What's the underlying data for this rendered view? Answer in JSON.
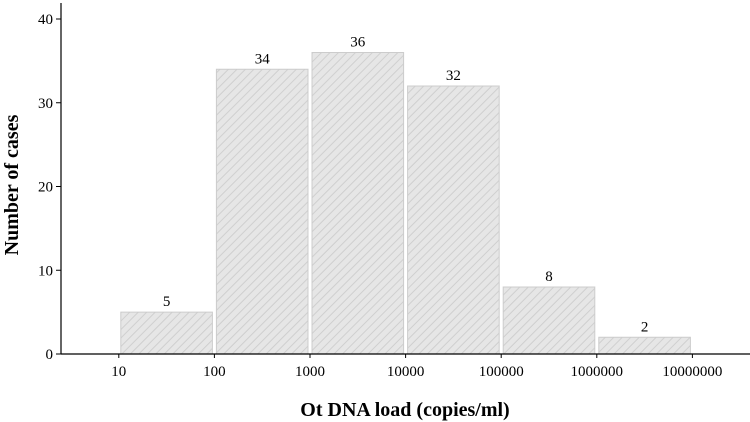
{
  "chart_data": {
    "type": "bar",
    "title": "",
    "xlabel": "Ot DNA load (copies/ml)",
    "ylabel": "Number of cases",
    "x_scale": "log",
    "x_ticks": [
      "10",
      "100",
      "1000",
      "10000",
      "100000",
      "1000000",
      "10000000"
    ],
    "y_ticks": [
      "0",
      "10",
      "20",
      "30",
      "40"
    ],
    "ylim": [
      0,
      42
    ],
    "grid": false,
    "legend": "none",
    "bar_color": "#e4e4e4",
    "bar_edge_color": "#cccccc",
    "bins": [
      {
        "range": [
          "10",
          "100"
        ],
        "value": 5
      },
      {
        "range": [
          "100",
          "1000"
        ],
        "value": 34
      },
      {
        "range": [
          "1000",
          "10000"
        ],
        "value": 36
      },
      {
        "range": [
          "10000",
          "100000"
        ],
        "value": 32
      },
      {
        "range": [
          "100000",
          "1000000"
        ],
        "value": 8
      },
      {
        "range": [
          "1000000",
          "10000000"
        ],
        "value": 2
      }
    ]
  }
}
